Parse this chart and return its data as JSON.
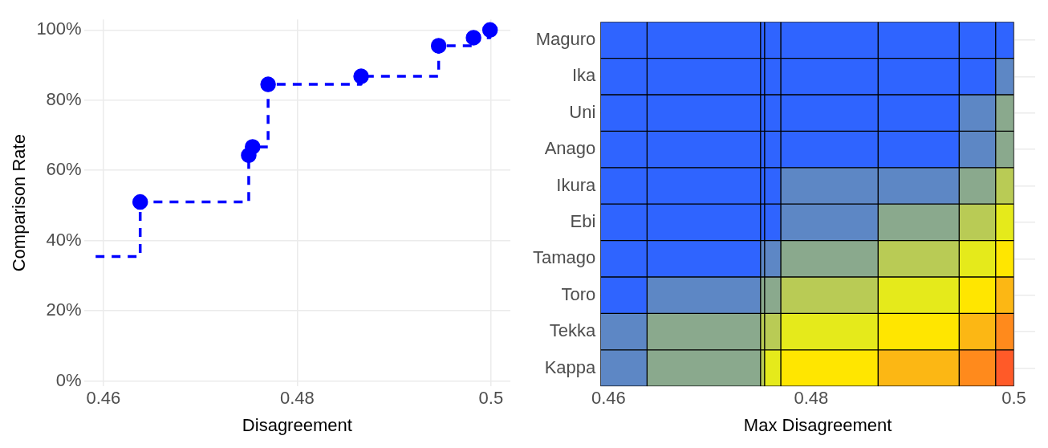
{
  "chart_data": [
    {
      "type": "step",
      "xlabel": "Disagreement",
      "ylabel": "Comparison Rate",
      "xlim": [
        0.458,
        0.502
      ],
      "xticks": [
        0.46,
        0.48,
        0.5
      ],
      "ylim": [
        -1.5,
        103
      ],
      "yticks": [
        {
          "value": 0,
          "label": "0%"
        },
        {
          "value": 20,
          "label": "20%"
        },
        {
          "value": 40,
          "label": "40%"
        },
        {
          "value": 60,
          "label": "60%"
        },
        {
          "value": 80,
          "label": "80%"
        },
        {
          "value": 100,
          "label": "100%"
        }
      ],
      "grid": true,
      "series": [
        {
          "type": "step",
          "color": "#0000ff",
          "line_style": "dashed",
          "marker": "none",
          "x": [
            0.4592,
            0.4638,
            0.475,
            0.4754,
            0.477,
            0.4866,
            0.4946,
            0.4982,
            0.4999
          ],
          "values": [
            35.5,
            51,
            64.3,
            66.7,
            84.5,
            86.8,
            95.5,
            97.8,
            100
          ]
        },
        {
          "type": "scatter",
          "color": "#0000ff",
          "marker": "circle",
          "x": [
            0.4638,
            0.475,
            0.4754,
            0.477,
            0.4866,
            0.4946,
            0.4982,
            0.4999
          ],
          "values": [
            51,
            64.3,
            66.7,
            84.5,
            86.8,
            95.5,
            97.8,
            100
          ]
        }
      ]
    },
    {
      "type": "bar",
      "orientation": "horizontal",
      "xlabel": "Max Disagreement",
      "xlim": [
        0.4592,
        0.5021
      ],
      "xticks": [
        0.46,
        0.48,
        0.5
      ],
      "grid": true,
      "categories": [
        "Maguro",
        "Ika",
        "Uni",
        "Anago",
        "Ikura",
        "Ebi",
        "Tamago",
        "Toro",
        "Tekka",
        "Kappa"
      ],
      "series": [
        {
          "base": [
            0.4592,
            0.4592,
            0.4592,
            0.4592,
            0.4592,
            0.4592,
            0.4592,
            0.4592,
            0.4592,
            0.4592
          ],
          "values": [
            0.0046,
            0.0046,
            0.0046,
            0.0046,
            0.0046,
            0.0046,
            0.0046,
            0.0046,
            0.0046,
            0.0046
          ],
          "colors": [
            "#2f64ff",
            "#2f64ff",
            "#2f64ff",
            "#2f64ff",
            "#2f64ff",
            "#2f64ff",
            "#2f64ff",
            "#2f64ff",
            "#5d87c5",
            "#5d87c5"
          ]
        },
        {
          "base": [
            0.4638,
            0.4638,
            0.4638,
            0.4638,
            0.4638,
            0.4638,
            0.4638,
            0.4638,
            0.4638,
            0.4638
          ],
          "values": [
            0.0112,
            0.0112,
            0.0112,
            0.0112,
            0.0112,
            0.0112,
            0.0112,
            0.0112,
            0.0112,
            0.0112
          ],
          "colors": [
            "#2f64ff",
            "#2f64ff",
            "#2f64ff",
            "#2f64ff",
            "#2f64ff",
            "#2f64ff",
            "#2f64ff",
            "#5d87c5",
            "#8aa98d",
            "#8aa98d"
          ]
        },
        {
          "base": [
            0.475,
            0.475,
            0.475,
            0.475,
            0.475,
            0.475,
            0.475,
            0.475,
            0.475,
            0.475
          ],
          "values": [
            0.0004,
            0.0004,
            0.0004,
            0.0004,
            0.0004,
            0.0004,
            0.0004,
            0.0004,
            0.0004,
            0.0004
          ],
          "colors": [
            "#2f64ff",
            "#2f64ff",
            "#2f64ff",
            "#2f64ff",
            "#2f64ff",
            "#2f64ff",
            "#5d87c5",
            "#8aa98d",
            "#b9cb55",
            "#b9cb55"
          ]
        },
        {
          "base": [
            0.4754,
            0.4754,
            0.4754,
            0.4754,
            0.4754,
            0.4754,
            0.4754,
            0.4754,
            0.4754,
            0.4754
          ],
          "values": [
            0.0016,
            0.0016,
            0.0016,
            0.0016,
            0.0016,
            0.0016,
            0.0016,
            0.0016,
            0.0016,
            0.0016
          ],
          "colors": [
            "#2f64ff",
            "#2f64ff",
            "#2f64ff",
            "#2f64ff",
            "#2f64ff",
            "#2f64ff",
            "#5d87c5",
            "#8aa98d",
            "#b9cb55",
            "#e5ea1b"
          ]
        },
        {
          "base": [
            0.477,
            0.477,
            0.477,
            0.477,
            0.477,
            0.477,
            0.477,
            0.477,
            0.477,
            0.477
          ],
          "values": [
            0.0096,
            0.0096,
            0.0096,
            0.0096,
            0.0096,
            0.0096,
            0.0096,
            0.0096,
            0.0096,
            0.0096
          ],
          "colors": [
            "#2f64ff",
            "#2f64ff",
            "#2f64ff",
            "#2f64ff",
            "#5d87c5",
            "#5d87c5",
            "#8aa98d",
            "#b9cb55",
            "#e5ea1b",
            "#ffe600"
          ]
        },
        {
          "base": [
            0.4866,
            0.4866,
            0.4866,
            0.4866,
            0.4866,
            0.4866,
            0.4866,
            0.4866,
            0.4866,
            0.4866
          ],
          "values": [
            0.008,
            0.008,
            0.008,
            0.008,
            0.008,
            0.008,
            0.008,
            0.008,
            0.008,
            0.008
          ],
          "colors": [
            "#2f64ff",
            "#2f64ff",
            "#2f64ff",
            "#2f64ff",
            "#5d87c5",
            "#8aa98d",
            "#b9cb55",
            "#e5ea1b",
            "#ffe600",
            "#fcb714"
          ]
        },
        {
          "base": [
            0.4946,
            0.4946,
            0.4946,
            0.4946,
            0.4946,
            0.4946,
            0.4946,
            0.4946,
            0.4946,
            0.4946
          ],
          "values": [
            0.0036,
            0.0036,
            0.0036,
            0.0036,
            0.0036,
            0.0036,
            0.0036,
            0.0036,
            0.0036,
            0.0036
          ],
          "colors": [
            "#2f64ff",
            "#2f64ff",
            "#5d87c5",
            "#5d87c5",
            "#8aa98d",
            "#b9cb55",
            "#e5ea1b",
            "#ffe600",
            "#fcb714",
            "#ff8a1c"
          ]
        },
        {
          "base": [
            0.4982,
            0.4982,
            0.4982,
            0.4982,
            0.4982,
            0.4982,
            0.4982,
            0.4982,
            0.4982,
            0.4982
          ],
          "values": [
            0.0018,
            0.0018,
            0.0018,
            0.0018,
            0.0018,
            0.0018,
            0.0018,
            0.0018,
            0.0018,
            0.0018
          ],
          "colors": [
            "#2f64ff",
            "#5d87c5",
            "#8aa98d",
            "#8aa98d",
            "#b9cb55",
            "#e5ea1b",
            "#ffe600",
            "#fcb714",
            "#ff8a1c",
            "#ff5a28"
          ]
        }
      ]
    }
  ]
}
